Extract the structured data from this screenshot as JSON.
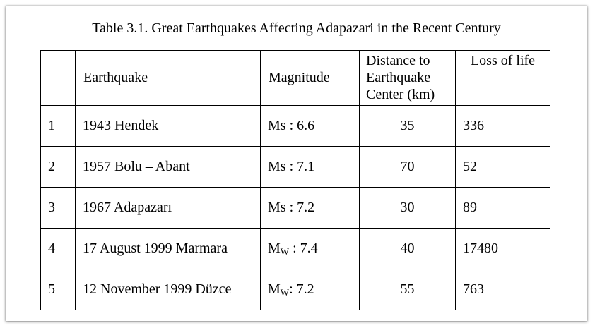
{
  "caption": "Table 3.1. Great Earthquakes Affecting Adapazari in the Recent Century",
  "header": {
    "index": "",
    "earthquake": "Earthquake",
    "magnitude": "Magnitude",
    "distance_line1": "Distance to",
    "distance_line2": "Earthquake",
    "distance_line3": "Center (km)",
    "loss": "Loss of life"
  },
  "rows": [
    {
      "index": "1",
      "earthquake": "1943 Hendek",
      "mag_prefix": "Ms",
      "mag_sub": "",
      "mag_sep": " : ",
      "mag_value": "6.6",
      "distance": "35",
      "loss": "336"
    },
    {
      "index": "2",
      "earthquake": "1957 Bolu – Abant",
      "mag_prefix": "Ms",
      "mag_sub": "",
      "mag_sep": " : ",
      "mag_value": "7.1",
      "distance": "70",
      "loss": "52"
    },
    {
      "index": "3",
      "earthquake": "1967 Adapazarı",
      "mag_prefix": "Ms",
      "mag_sub": "",
      "mag_sep": " : ",
      "mag_value": "7.2",
      "distance": "30",
      "loss": "89"
    },
    {
      "index": "4",
      "earthquake": "17 August 1999 Marmara",
      "mag_prefix": "M",
      "mag_sub": "W",
      "mag_sep": " : ",
      "mag_value": "7.4",
      "distance": "40",
      "loss": "17480"
    },
    {
      "index": "5",
      "earthquake": "12 November 1999 Düzce",
      "mag_prefix": "M",
      "mag_sub": "W",
      "mag_sep": ": ",
      "mag_value": "7.2",
      "distance": "55",
      "loss": "763"
    }
  ]
}
